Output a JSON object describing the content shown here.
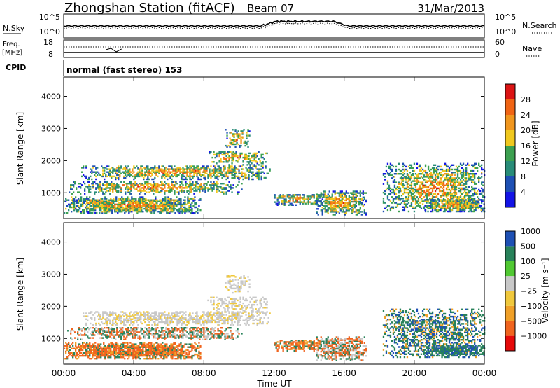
{
  "header": {
    "station": "Zhongshan Station (fitACF)",
    "beam": "Beam 07",
    "date": "31/Mar/2013"
  },
  "sky_panel": {
    "left_label": "N.Sky",
    "right_label": "N.Search",
    "y_ticks": [
      "10^5",
      "10^0"
    ]
  },
  "freq_panel": {
    "left_label_1": "Freq.",
    "left_label_2": "[MHz]",
    "right_label": "Nave",
    "left_ticks": [
      "18",
      "8"
    ],
    "right_ticks": [
      "60",
      "0"
    ]
  },
  "cpid": {
    "label": "CPID",
    "value": "normal (fast stereo) 153"
  },
  "colors": {
    "power": [
      "#1414e6",
      "#1e50b4",
      "#288c78",
      "#3ca050",
      "#f0c81e",
      "#f0961e",
      "#f06414",
      "#dc1414"
    ],
    "velocity": [
      "#e60a0a",
      "#f0641e",
      "#f0a028",
      "#f0c83c",
      "#c8c8c8",
      "#50c832",
      "#28825a",
      "#1e50b4",
      "#1e3cc8"
    ]
  },
  "chart_data": [
    {
      "type": "heatmap",
      "name": "power",
      "ylabel": "Slant Range [km]",
      "y_ticks": [
        1000,
        2000,
        3000,
        4000
      ],
      "ylim": [
        200,
        4600
      ],
      "colorbar_label": "Power [dB]",
      "colorbar_ticks": [
        "4",
        "8",
        "12",
        "16",
        "20",
        "24",
        "28"
      ],
      "xlim": [
        0,
        24
      ]
    },
    {
      "type": "heatmap",
      "name": "velocity",
      "ylabel": "Slant Range [km]",
      "y_ticks": [
        1000,
        2000,
        3000,
        4000
      ],
      "ylim": [
        200,
        4600
      ],
      "colorbar_label": "Velocity [m s⁻¹]",
      "colorbar_ticks": [
        "1000",
        "500",
        "100",
        "25",
        "−25",
        "−100",
        "−500",
        "−1000"
      ],
      "xlim": [
        0,
        24
      ]
    }
  ],
  "x_axis": {
    "ticks": [
      "00:00",
      "04:00",
      "08:00",
      "12:00",
      "16:00",
      "20:00",
      "00:00"
    ],
    "label": "Time UT"
  }
}
